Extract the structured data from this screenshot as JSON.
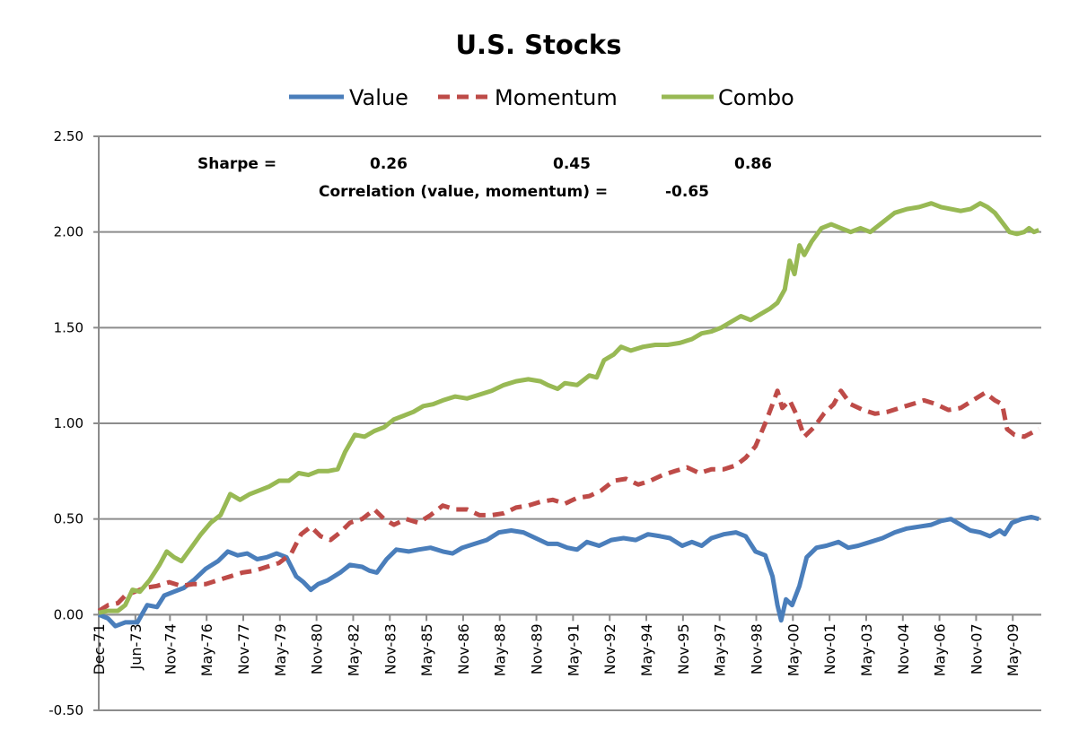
{
  "chart_data": {
    "type": "line",
    "title": "U.S. Stocks",
    "xlabel": "",
    "ylabel": "",
    "ylim": [
      -0.5,
      2.5
    ],
    "yticks": [
      -0.5,
      0.0,
      0.5,
      1.0,
      1.5,
      2.0,
      2.5
    ],
    "ytick_labels": [
      "-0.50",
      "0.00",
      "0.50",
      "1.00",
      "1.50",
      "2.00",
      "2.50"
    ],
    "grid": "horizontal",
    "legend_position": "top-center",
    "x_axis_start": "Dec-71",
    "x_axis_end": "Jun-10",
    "x_ticks": [
      "Dec-71",
      "Jun-73",
      "Nov-74",
      "May-76",
      "Nov-77",
      "May-79",
      "Nov-80",
      "May-82",
      "Nov-83",
      "May-85",
      "Nov-86",
      "May-88",
      "Nov-89",
      "May-91",
      "Nov-92",
      "May-94",
      "Nov-95",
      "May-97",
      "Nov-98",
      "May-00",
      "Nov-01",
      "May-03",
      "Nov-04",
      "May-06",
      "Nov-07",
      "May-09"
    ],
    "x_tick_years": [
      1971.917,
      1973.417,
      1974.833,
      1976.333,
      1977.833,
      1979.333,
      1980.833,
      1982.333,
      1983.833,
      1985.333,
      1986.833,
      1988.333,
      1989.833,
      1991.333,
      1992.833,
      1994.333,
      1995.833,
      1997.333,
      1998.833,
      2000.333,
      2001.833,
      2003.333,
      2004.833,
      2006.333,
      2007.833,
      2009.333
    ],
    "series": [
      {
        "name": "Value",
        "color": "#4a7ebb",
        "style": "solid",
        "points": [
          [
            1971.92,
            0.0
          ],
          [
            1972.3,
            -0.02
          ],
          [
            1972.6,
            -0.06
          ],
          [
            1973.0,
            -0.04
          ],
          [
            1973.5,
            -0.04
          ],
          [
            1973.9,
            0.05
          ],
          [
            1974.3,
            0.04
          ],
          [
            1974.6,
            0.1
          ],
          [
            1975.0,
            0.12
          ],
          [
            1975.4,
            0.14
          ],
          [
            1975.8,
            0.18
          ],
          [
            1976.3,
            0.24
          ],
          [
            1976.8,
            0.28
          ],
          [
            1977.2,
            0.33
          ],
          [
            1977.6,
            0.31
          ],
          [
            1978.0,
            0.32
          ],
          [
            1978.4,
            0.29
          ],
          [
            1978.8,
            0.3
          ],
          [
            1979.2,
            0.32
          ],
          [
            1979.6,
            0.3
          ],
          [
            1980.0,
            0.2
          ],
          [
            1980.3,
            0.17
          ],
          [
            1980.6,
            0.13
          ],
          [
            1980.9,
            0.16
          ],
          [
            1981.3,
            0.18
          ],
          [
            1981.8,
            0.22
          ],
          [
            1982.2,
            0.26
          ],
          [
            1982.7,
            0.25
          ],
          [
            1983.0,
            0.23
          ],
          [
            1983.3,
            0.22
          ],
          [
            1983.7,
            0.29
          ],
          [
            1984.1,
            0.34
          ],
          [
            1984.6,
            0.33
          ],
          [
            1985.0,
            0.34
          ],
          [
            1985.5,
            0.35
          ],
          [
            1986.0,
            0.33
          ],
          [
            1986.4,
            0.32
          ],
          [
            1986.8,
            0.35
          ],
          [
            1987.3,
            0.37
          ],
          [
            1987.8,
            0.39
          ],
          [
            1988.3,
            0.43
          ],
          [
            1988.8,
            0.44
          ],
          [
            1989.3,
            0.43
          ],
          [
            1989.8,
            0.4
          ],
          [
            1990.3,
            0.37
          ],
          [
            1990.7,
            0.37
          ],
          [
            1991.1,
            0.35
          ],
          [
            1991.5,
            0.34
          ],
          [
            1991.9,
            0.38
          ],
          [
            1992.4,
            0.36
          ],
          [
            1992.9,
            0.39
          ],
          [
            1993.4,
            0.4
          ],
          [
            1993.9,
            0.39
          ],
          [
            1994.4,
            0.42
          ],
          [
            1994.9,
            0.41
          ],
          [
            1995.3,
            0.4
          ],
          [
            1995.8,
            0.36
          ],
          [
            1996.2,
            0.38
          ],
          [
            1996.6,
            0.36
          ],
          [
            1997.0,
            0.4
          ],
          [
            1997.5,
            0.42
          ],
          [
            1998.0,
            0.43
          ],
          [
            1998.4,
            0.41
          ],
          [
            1998.8,
            0.33
          ],
          [
            1999.2,
            0.31
          ],
          [
            1999.5,
            0.2
          ],
          [
            1999.7,
            0.05
          ],
          [
            1999.85,
            -0.03
          ],
          [
            2000.05,
            0.08
          ],
          [
            2000.3,
            0.05
          ],
          [
            2000.6,
            0.15
          ],
          [
            2000.9,
            0.3
          ],
          [
            2001.3,
            0.35
          ],
          [
            2001.7,
            0.36
          ],
          [
            2002.2,
            0.38
          ],
          [
            2002.6,
            0.35
          ],
          [
            2003.0,
            0.36
          ],
          [
            2003.5,
            0.38
          ],
          [
            2004.0,
            0.4
          ],
          [
            2004.5,
            0.43
          ],
          [
            2005.0,
            0.45
          ],
          [
            2005.5,
            0.46
          ],
          [
            2006.0,
            0.47
          ],
          [
            2006.4,
            0.49
          ],
          [
            2006.8,
            0.5
          ],
          [
            2007.2,
            0.47
          ],
          [
            2007.6,
            0.44
          ],
          [
            2008.0,
            0.43
          ],
          [
            2008.4,
            0.41
          ],
          [
            2008.8,
            0.44
          ],
          [
            2009.0,
            0.42
          ],
          [
            2009.3,
            0.48
          ],
          [
            2009.7,
            0.5
          ],
          [
            2010.1,
            0.51
          ],
          [
            2010.4,
            0.5
          ]
        ]
      },
      {
        "name": "Momentum",
        "color": "#be4b48",
        "style": "dashed",
        "points": [
          [
            1971.92,
            0.02
          ],
          [
            1972.3,
            0.05
          ],
          [
            1972.7,
            0.06
          ],
          [
            1973.0,
            0.1
          ],
          [
            1973.4,
            0.12
          ],
          [
            1973.8,
            0.14
          ],
          [
            1974.3,
            0.15
          ],
          [
            1974.8,
            0.17
          ],
          [
            1975.3,
            0.15
          ],
          [
            1975.8,
            0.16
          ],
          [
            1976.3,
            0.16
          ],
          [
            1976.8,
            0.18
          ],
          [
            1977.3,
            0.2
          ],
          [
            1977.8,
            0.22
          ],
          [
            1978.3,
            0.23
          ],
          [
            1978.8,
            0.25
          ],
          [
            1979.3,
            0.27
          ],
          [
            1979.8,
            0.32
          ],
          [
            1980.2,
            0.42
          ],
          [
            1980.6,
            0.46
          ],
          [
            1981.0,
            0.41
          ],
          [
            1981.4,
            0.39
          ],
          [
            1981.8,
            0.43
          ],
          [
            1982.2,
            0.48
          ],
          [
            1982.7,
            0.5
          ],
          [
            1983.2,
            0.55
          ],
          [
            1983.6,
            0.5
          ],
          [
            1984.0,
            0.47
          ],
          [
            1984.5,
            0.5
          ],
          [
            1985.0,
            0.48
          ],
          [
            1985.5,
            0.52
          ],
          [
            1986.0,
            0.57
          ],
          [
            1986.5,
            0.55
          ],
          [
            1987.0,
            0.55
          ],
          [
            1987.5,
            0.52
          ],
          [
            1988.0,
            0.52
          ],
          [
            1988.5,
            0.53
          ],
          [
            1989.0,
            0.56
          ],
          [
            1989.5,
            0.57
          ],
          [
            1990.0,
            0.59
          ],
          [
            1990.5,
            0.6
          ],
          [
            1991.0,
            0.58
          ],
          [
            1991.5,
            0.61
          ],
          [
            1992.0,
            0.62
          ],
          [
            1992.5,
            0.65
          ],
          [
            1993.0,
            0.7
          ],
          [
            1993.5,
            0.71
          ],
          [
            1994.0,
            0.68
          ],
          [
            1994.5,
            0.7
          ],
          [
            1995.0,
            0.73
          ],
          [
            1995.5,
            0.75
          ],
          [
            1996.0,
            0.77
          ],
          [
            1996.5,
            0.74
          ],
          [
            1997.0,
            0.76
          ],
          [
            1997.5,
            0.76
          ],
          [
            1998.0,
            0.78
          ],
          [
            1998.4,
            0.82
          ],
          [
            1998.8,
            0.88
          ],
          [
            1999.2,
            1.0
          ],
          [
            1999.5,
            1.1
          ],
          [
            1999.7,
            1.17
          ],
          [
            1999.9,
            1.08
          ],
          [
            2000.2,
            1.12
          ],
          [
            2000.5,
            1.04
          ],
          [
            2000.8,
            0.93
          ],
          [
            2001.2,
            0.98
          ],
          [
            2001.6,
            1.05
          ],
          [
            2002.0,
            1.1
          ],
          [
            2002.3,
            1.17
          ],
          [
            2002.7,
            1.1
          ],
          [
            2003.2,
            1.07
          ],
          [
            2003.7,
            1.05
          ],
          [
            2004.2,
            1.06
          ],
          [
            2004.7,
            1.08
          ],
          [
            2005.2,
            1.1
          ],
          [
            2005.7,
            1.12
          ],
          [
            2006.2,
            1.1
          ],
          [
            2006.7,
            1.07
          ],
          [
            2007.2,
            1.08
          ],
          [
            2007.7,
            1.12
          ],
          [
            2008.2,
            1.16
          ],
          [
            2008.6,
            1.12
          ],
          [
            2008.9,
            1.1
          ],
          [
            2009.1,
            0.97
          ],
          [
            2009.4,
            0.94
          ],
          [
            2009.8,
            0.93
          ],
          [
            2010.1,
            0.95
          ],
          [
            2010.4,
            0.97
          ]
        ]
      },
      {
        "name": "Combo",
        "color": "#98b954",
        "style": "solid",
        "points": [
          [
            1971.92,
            0.01
          ],
          [
            1972.3,
            0.02
          ],
          [
            1972.7,
            0.02
          ],
          [
            1973.0,
            0.05
          ],
          [
            1973.3,
            0.13
          ],
          [
            1973.6,
            0.12
          ],
          [
            1974.0,
            0.18
          ],
          [
            1974.4,
            0.26
          ],
          [
            1974.7,
            0.33
          ],
          [
            1975.0,
            0.3
          ],
          [
            1975.3,
            0.28
          ],
          [
            1975.7,
            0.35
          ],
          [
            1976.1,
            0.42
          ],
          [
            1976.5,
            0.48
          ],
          [
            1976.9,
            0.52
          ],
          [
            1977.3,
            0.63
          ],
          [
            1977.7,
            0.6
          ],
          [
            1978.1,
            0.63
          ],
          [
            1978.5,
            0.65
          ],
          [
            1978.9,
            0.67
          ],
          [
            1979.3,
            0.7
          ],
          [
            1979.7,
            0.7
          ],
          [
            1980.1,
            0.74
          ],
          [
            1980.5,
            0.73
          ],
          [
            1980.9,
            0.75
          ],
          [
            1981.3,
            0.75
          ],
          [
            1981.7,
            0.76
          ],
          [
            1982.0,
            0.85
          ],
          [
            1982.4,
            0.94
          ],
          [
            1982.8,
            0.93
          ],
          [
            1983.2,
            0.96
          ],
          [
            1983.6,
            0.98
          ],
          [
            1984.0,
            1.02
          ],
          [
            1984.4,
            1.04
          ],
          [
            1984.8,
            1.06
          ],
          [
            1985.2,
            1.09
          ],
          [
            1985.6,
            1.1
          ],
          [
            1986.0,
            1.12
          ],
          [
            1986.5,
            1.14
          ],
          [
            1987.0,
            1.13
          ],
          [
            1987.5,
            1.15
          ],
          [
            1988.0,
            1.17
          ],
          [
            1988.5,
            1.2
          ],
          [
            1989.0,
            1.22
          ],
          [
            1989.5,
            1.23
          ],
          [
            1990.0,
            1.22
          ],
          [
            1990.3,
            1.2
          ],
          [
            1990.7,
            1.18
          ],
          [
            1991.0,
            1.21
          ],
          [
            1991.5,
            1.2
          ],
          [
            1992.0,
            1.25
          ],
          [
            1992.3,
            1.24
          ],
          [
            1992.6,
            1.33
          ],
          [
            1993.0,
            1.36
          ],
          [
            1993.3,
            1.4
          ],
          [
            1993.7,
            1.38
          ],
          [
            1994.2,
            1.4
          ],
          [
            1994.7,
            1.41
          ],
          [
            1995.2,
            1.41
          ],
          [
            1995.7,
            1.42
          ],
          [
            1996.2,
            1.44
          ],
          [
            1996.6,
            1.47
          ],
          [
            1997.0,
            1.48
          ],
          [
            1997.4,
            1.5
          ],
          [
            1997.8,
            1.53
          ],
          [
            1998.2,
            1.56
          ],
          [
            1998.6,
            1.54
          ],
          [
            1999.0,
            1.57
          ],
          [
            1999.4,
            1.6
          ],
          [
            1999.7,
            1.63
          ],
          [
            2000.0,
            1.7
          ],
          [
            2000.2,
            1.85
          ],
          [
            2000.4,
            1.78
          ],
          [
            2000.6,
            1.93
          ],
          [
            2000.8,
            1.88
          ],
          [
            2001.1,
            1.95
          ],
          [
            2001.5,
            2.02
          ],
          [
            2001.9,
            2.04
          ],
          [
            2002.3,
            2.02
          ],
          [
            2002.7,
            2.0
          ],
          [
            2003.1,
            2.02
          ],
          [
            2003.5,
            2.0
          ],
          [
            2004.0,
            2.05
          ],
          [
            2004.5,
            2.1
          ],
          [
            2005.0,
            2.12
          ],
          [
            2005.5,
            2.13
          ],
          [
            2006.0,
            2.15
          ],
          [
            2006.4,
            2.13
          ],
          [
            2006.8,
            2.12
          ],
          [
            2007.2,
            2.11
          ],
          [
            2007.6,
            2.12
          ],
          [
            2008.0,
            2.15
          ],
          [
            2008.3,
            2.13
          ],
          [
            2008.6,
            2.1
          ],
          [
            2008.9,
            2.05
          ],
          [
            2009.2,
            2.0
          ],
          [
            2009.5,
            1.99
          ],
          [
            2009.8,
            2.0
          ],
          [
            2010.0,
            2.02
          ],
          [
            2010.2,
            2.0
          ],
          [
            2010.4,
            2.01
          ]
        ]
      }
    ],
    "annotations": {
      "sharpe_label": "Sharpe =",
      "sharpe_value": "0.26",
      "sharpe_momentum": "0.45",
      "sharpe_combo": "0.86",
      "correlation_label": "Correlation (value, momentum) =",
      "correlation_value": "-0.65"
    }
  }
}
